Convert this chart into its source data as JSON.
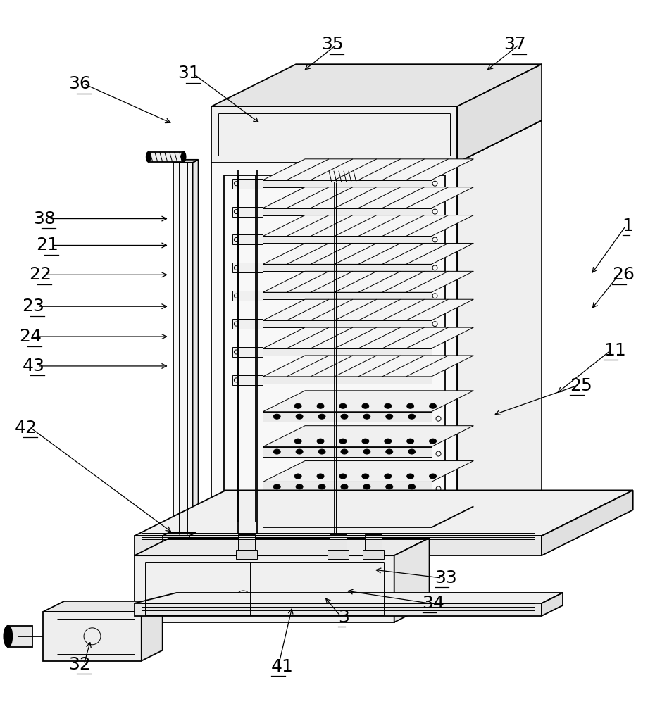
{
  "bg_color": "#ffffff",
  "lc": "#000000",
  "lw": 1.3,
  "tlw": 0.7,
  "label_fs": 18,
  "labels_info": [
    [
      1,
      885,
      320,
      840,
      390,
      "left"
    ],
    [
      3,
      480,
      878,
      460,
      848,
      "left"
    ],
    [
      11,
      858,
      498,
      790,
      560,
      "left"
    ],
    [
      21,
      82,
      348,
      240,
      348,
      "right"
    ],
    [
      22,
      72,
      390,
      240,
      390,
      "right"
    ],
    [
      23,
      62,
      435,
      240,
      435,
      "right"
    ],
    [
      24,
      58,
      478,
      240,
      478,
      "right"
    ],
    [
      25,
      810,
      548,
      700,
      590,
      "left"
    ],
    [
      26,
      870,
      390,
      840,
      440,
      "left"
    ],
    [
      31,
      283,
      103,
      370,
      175,
      "right"
    ],
    [
      32,
      128,
      945,
      128,
      910,
      "right"
    ],
    [
      33,
      618,
      822,
      530,
      810,
      "left"
    ],
    [
      34,
      600,
      858,
      490,
      840,
      "left"
    ],
    [
      35,
      488,
      62,
      430,
      100,
      "right"
    ],
    [
      36,
      128,
      118,
      245,
      175,
      "right"
    ],
    [
      37,
      748,
      62,
      690,
      100,
      "right"
    ],
    [
      38,
      78,
      310,
      240,
      310,
      "right"
    ],
    [
      41,
      385,
      948,
      415,
      862,
      "left"
    ],
    [
      42,
      52,
      608,
      245,
      758,
      "right"
    ],
    [
      43,
      62,
      520,
      240,
      520,
      "right"
    ]
  ]
}
